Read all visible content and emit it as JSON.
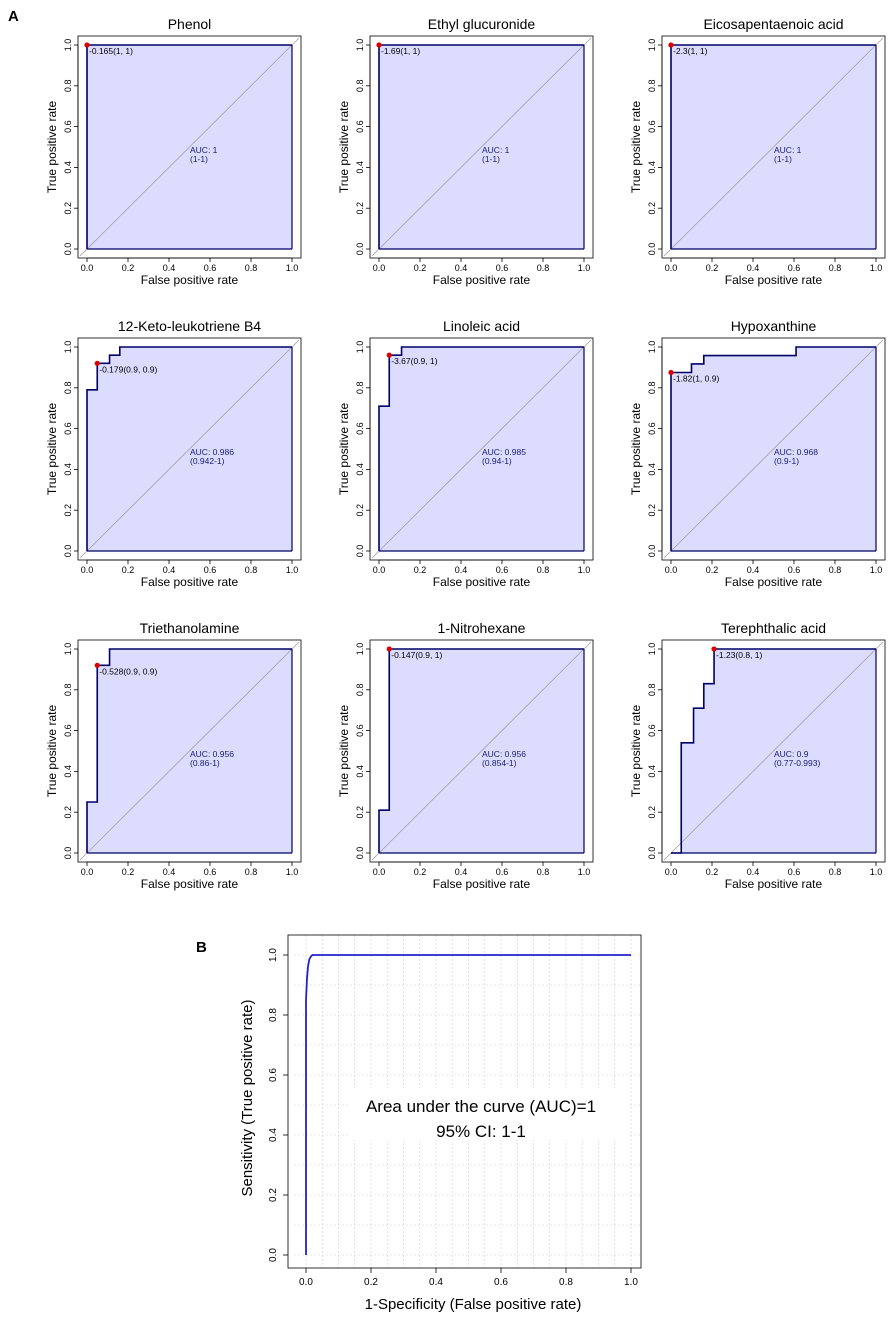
{
  "panel_labels": {
    "a": "A",
    "b": "B"
  },
  "colors": {
    "curve": "#000066",
    "fill": "#dcdcff",
    "diagonal": "#a0a0a0",
    "threshold_point": "#dd0000",
    "auc_text": "#1a1a7a",
    "panel_b_curve": "#2222cc",
    "grid": "#cfcfcf"
  },
  "chart_data": [
    {
      "type": "line",
      "title": "Phenol",
      "xlabel": "False positive rate",
      "ylabel": "True positive rate",
      "xlim": [
        0,
        1
      ],
      "ylim": [
        0,
        1
      ],
      "xticks": [
        "0.0",
        "0.2",
        "0.4",
        "0.6",
        "0.8",
        "1.0"
      ],
      "yticks": [
        "0.0",
        "0.2",
        "0.4",
        "0.6",
        "0.8",
        "1.0"
      ],
      "x": [
        0,
        0,
        1
      ],
      "y": [
        0,
        1,
        1
      ],
      "threshold": {
        "x": 0,
        "y": 1,
        "label": "-0.165(1, 1)"
      },
      "auc_label": "AUC: 1",
      "ci_label": "(1-1)"
    },
    {
      "type": "line",
      "title": "Ethyl glucuronide",
      "xlabel": "False positive rate",
      "ylabel": "True positive rate",
      "xlim": [
        0,
        1
      ],
      "ylim": [
        0,
        1
      ],
      "xticks": [
        "0.0",
        "0.2",
        "0.4",
        "0.6",
        "0.8",
        "1.0"
      ],
      "yticks": [
        "0.0",
        "0.2",
        "0.4",
        "0.6",
        "0.8",
        "1.0"
      ],
      "x": [
        0,
        0,
        1
      ],
      "y": [
        0,
        1,
        1
      ],
      "threshold": {
        "x": 0,
        "y": 1,
        "label": "-1.69(1, 1)"
      },
      "auc_label": "AUC: 1",
      "ci_label": "(1-1)"
    },
    {
      "type": "line",
      "title": "Eicosapentaenoic acid",
      "xlabel": "False positive rate",
      "ylabel": "True positive rate",
      "xlim": [
        0,
        1
      ],
      "ylim": [
        0,
        1
      ],
      "xticks": [
        "0.0",
        "0.2",
        "0.4",
        "0.6",
        "0.8",
        "1.0"
      ],
      "yticks": [
        "0.0",
        "0.2",
        "0.4",
        "0.6",
        "0.8",
        "1.0"
      ],
      "x": [
        0,
        0,
        1
      ],
      "y": [
        0,
        1,
        1
      ],
      "threshold": {
        "x": 0,
        "y": 1,
        "label": "-2.3(1, 1)"
      },
      "auc_label": "AUC: 1",
      "ci_label": "(1-1)"
    },
    {
      "type": "line",
      "title": "12-Keto-leukotriene B4",
      "xlabel": "False positive rate",
      "ylabel": "True positive rate",
      "xlim": [
        0,
        1
      ],
      "ylim": [
        0,
        1
      ],
      "xticks": [
        "0.0",
        "0.2",
        "0.4",
        "0.6",
        "0.8",
        "1.0"
      ],
      "yticks": [
        "0.0",
        "0.2",
        "0.4",
        "0.6",
        "0.8",
        "1.0"
      ],
      "x": [
        0,
        0,
        0.05,
        0.05,
        0.11,
        0.11,
        0.16,
        0.16,
        1
      ],
      "y": [
        0,
        0.79,
        0.79,
        0.92,
        0.92,
        0.96,
        0.96,
        1,
        1
      ],
      "threshold": {
        "x": 0.05,
        "y": 0.92,
        "label": "-0.179(0.9, 0.9)"
      },
      "auc_label": "AUC: 0.986",
      "ci_label": "(0.942-1)"
    },
    {
      "type": "line",
      "title": "Linoleic acid",
      "xlabel": "False positive rate",
      "ylabel": "True positive rate",
      "xlim": [
        0,
        1
      ],
      "ylim": [
        0,
        1
      ],
      "xticks": [
        "0.0",
        "0.2",
        "0.4",
        "0.6",
        "0.8",
        "1.0"
      ],
      "yticks": [
        "0.0",
        "0.2",
        "0.4",
        "0.6",
        "0.8",
        "1.0"
      ],
      "x": [
        0,
        0,
        0.05,
        0.05,
        0.11,
        0.11,
        1
      ],
      "y": [
        0,
        0.71,
        0.71,
        0.96,
        0.96,
        1,
        1
      ],
      "threshold": {
        "x": 0.05,
        "y": 0.96,
        "label": "-3.67(0.9, 1)"
      },
      "auc_label": "AUC: 0.985",
      "ci_label": "(0.94-1)"
    },
    {
      "type": "line",
      "title": "Hypoxanthine",
      "xlabel": "False positive rate",
      "ylabel": "True positive rate",
      "xlim": [
        0,
        1
      ],
      "ylim": [
        0,
        1
      ],
      "xticks": [
        "0.0",
        "0.2",
        "0.4",
        "0.6",
        "0.8",
        "1.0"
      ],
      "yticks": [
        "0.0",
        "0.2",
        "0.4",
        "0.6",
        "0.8",
        "1.0"
      ],
      "x": [
        0,
        0,
        0.1,
        0.1,
        0.16,
        0.16,
        0.61,
        0.61,
        1
      ],
      "y": [
        0,
        0.875,
        0.875,
        0.917,
        0.917,
        0.958,
        0.958,
        1,
        1
      ],
      "threshold": {
        "x": 0,
        "y": 0.875,
        "label": "-1.82(1, 0.9)"
      },
      "auc_label": "AUC: 0.968",
      "ci_label": "(0.9-1)"
    },
    {
      "type": "line",
      "title": "Triethanolamine",
      "xlabel": "False positive rate",
      "ylabel": "True positive rate",
      "xlim": [
        0,
        1
      ],
      "ylim": [
        0,
        1
      ],
      "xticks": [
        "0.0",
        "0.2",
        "0.4",
        "0.6",
        "0.8",
        "1.0"
      ],
      "yticks": [
        "0.0",
        "0.2",
        "0.4",
        "0.6",
        "0.8",
        "1.0"
      ],
      "x": [
        0,
        0,
        0.05,
        0.05,
        0.11,
        0.11,
        1
      ],
      "y": [
        0,
        0.25,
        0.25,
        0.92,
        0.92,
        1,
        1
      ],
      "threshold": {
        "x": 0.05,
        "y": 0.92,
        "label": "-0.528(0.9, 0.9)"
      },
      "auc_label": "AUC: 0.956",
      "ci_label": "(0.86-1)"
    },
    {
      "type": "line",
      "title": "1-Nitrohexane",
      "xlabel": "False positive rate",
      "ylabel": "True positive rate",
      "xlim": [
        0,
        1
      ],
      "ylim": [
        0,
        1
      ],
      "xticks": [
        "0.0",
        "0.2",
        "0.4",
        "0.6",
        "0.8",
        "1.0"
      ],
      "yticks": [
        "0.0",
        "0.2",
        "0.4",
        "0.6",
        "0.8",
        "1.0"
      ],
      "x": [
        0,
        0,
        0.05,
        0.05,
        1
      ],
      "y": [
        0,
        0.21,
        0.21,
        1,
        1
      ],
      "threshold": {
        "x": 0.05,
        "y": 1,
        "label": "-0.147(0.9, 1)"
      },
      "auc_label": "AUC: 0.956",
      "ci_label": "(0.854-1)"
    },
    {
      "type": "line",
      "title": "Terephthalic acid",
      "xlabel": "False positive rate",
      "ylabel": "True positive rate",
      "xlim": [
        0,
        1
      ],
      "ylim": [
        0,
        1
      ],
      "xticks": [
        "0.0",
        "0.2",
        "0.4",
        "0.6",
        "0.8",
        "1.0"
      ],
      "yticks": [
        "0.0",
        "0.2",
        "0.4",
        "0.6",
        "0.8",
        "1.0"
      ],
      "x": [
        0,
        0.05,
        0.05,
        0.11,
        0.11,
        0.16,
        0.16,
        0.21,
        0.21,
        1
      ],
      "y": [
        0,
        0,
        0.54,
        0.54,
        0.71,
        0.71,
        0.83,
        0.83,
        1,
        1
      ],
      "threshold": {
        "x": 0.21,
        "y": 1,
        "label": "-1.23(0.8, 1)"
      },
      "auc_label": "AUC: 0.9",
      "ci_label": "(0.77-0.993)"
    },
    {
      "type": "line",
      "title": "",
      "xlabel": "1-Specificity (False positive rate)",
      "ylabel": "Sensitivity (True positive rate)",
      "xlim": [
        0,
        1
      ],
      "ylim": [
        0,
        1
      ],
      "xticks": [
        "0.0",
        "0.2",
        "0.4",
        "0.6",
        "0.8",
        "1.0"
      ],
      "yticks": [
        "0.0",
        "0.2",
        "0.4",
        "0.6",
        "0.8",
        "1.0"
      ],
      "grid": true,
      "x": [
        0,
        0,
        0.003,
        0.006,
        0.01,
        0.015,
        0.02,
        0.03,
        1
      ],
      "y": [
        0,
        0.85,
        0.92,
        0.96,
        0.985,
        0.995,
        1,
        1,
        1
      ],
      "annotation_line1": "Area under the curve (AUC)=1",
      "annotation_line2": "95% CI: 1-1"
    }
  ]
}
